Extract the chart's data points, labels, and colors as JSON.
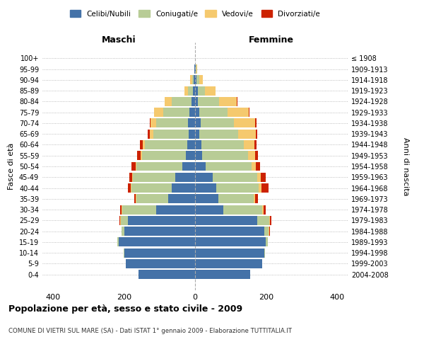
{
  "age_groups": [
    "0-4",
    "5-9",
    "10-14",
    "15-19",
    "20-24",
    "25-29",
    "30-34",
    "35-39",
    "40-44",
    "45-49",
    "50-54",
    "55-59",
    "60-64",
    "65-69",
    "70-74",
    "75-79",
    "80-84",
    "85-89",
    "90-94",
    "95-99",
    "100+"
  ],
  "birth_years": [
    "2004-2008",
    "1999-2003",
    "1994-1998",
    "1989-1993",
    "1984-1988",
    "1979-1983",
    "1974-1978",
    "1969-1973",
    "1964-1968",
    "1959-1963",
    "1954-1958",
    "1949-1953",
    "1944-1948",
    "1939-1943",
    "1934-1938",
    "1929-1933",
    "1924-1928",
    "1919-1923",
    "1914-1918",
    "1909-1913",
    "≤ 1908"
  ],
  "maschi": {
    "celibi": [
      160,
      195,
      200,
      215,
      200,
      190,
      110,
      75,
      65,
      55,
      35,
      25,
      22,
      18,
      20,
      15,
      10,
      5,
      3,
      2,
      0
    ],
    "coniugati": [
      0,
      0,
      2,
      4,
      8,
      20,
      95,
      90,
      115,
      120,
      130,
      125,
      120,
      100,
      90,
      75,
      55,
      15,
      5,
      0,
      0
    ],
    "vedovi": [
      0,
      0,
      0,
      0,
      0,
      2,
      2,
      2,
      2,
      2,
      3,
      3,
      5,
      10,
      15,
      25,
      20,
      10,
      5,
      0,
      0
    ],
    "divorziati": [
      0,
      0,
      0,
      0,
      0,
      2,
      4,
      5,
      8,
      8,
      12,
      10,
      8,
      5,
      2,
      0,
      0,
      0,
      0,
      0,
      0
    ]
  },
  "femmine": {
    "nubili": [
      155,
      190,
      195,
      200,
      195,
      175,
      80,
      65,
      60,
      50,
      30,
      20,
      18,
      12,
      15,
      12,
      8,
      8,
      3,
      2,
      0
    ],
    "coniugate": [
      0,
      0,
      2,
      5,
      12,
      35,
      110,
      100,
      120,
      125,
      130,
      130,
      120,
      110,
      95,
      80,
      60,
      20,
      8,
      2,
      0
    ],
    "vedove": [
      0,
      0,
      0,
      0,
      2,
      2,
      4,
      5,
      8,
      10,
      12,
      20,
      30,
      50,
      60,
      60,
      50,
      30,
      10,
      2,
      0
    ],
    "divorziate": [
      0,
      0,
      0,
      0,
      2,
      3,
      5,
      8,
      20,
      15,
      12,
      8,
      5,
      3,
      3,
      2,
      2,
      0,
      0,
      0,
      0
    ]
  },
  "colors": {
    "celibi": "#4472a8",
    "coniugati": "#b8cc96",
    "vedovi": "#f5c96e",
    "divorziati": "#cc2200"
  },
  "xlim": 430,
  "title": "Popolazione per età, sesso e stato civile - 2009",
  "subtitle": "COMUNE DI VIETRI SUL MARE (SA) - Dati ISTAT 1° gennaio 2009 - Elaborazione TUTTITALIA.IT",
  "ylabel": "Fasce di età",
  "ylabel_right": "Anni di nascita",
  "xlabel_maschi": "Maschi",
  "xlabel_femmine": "Femmine"
}
